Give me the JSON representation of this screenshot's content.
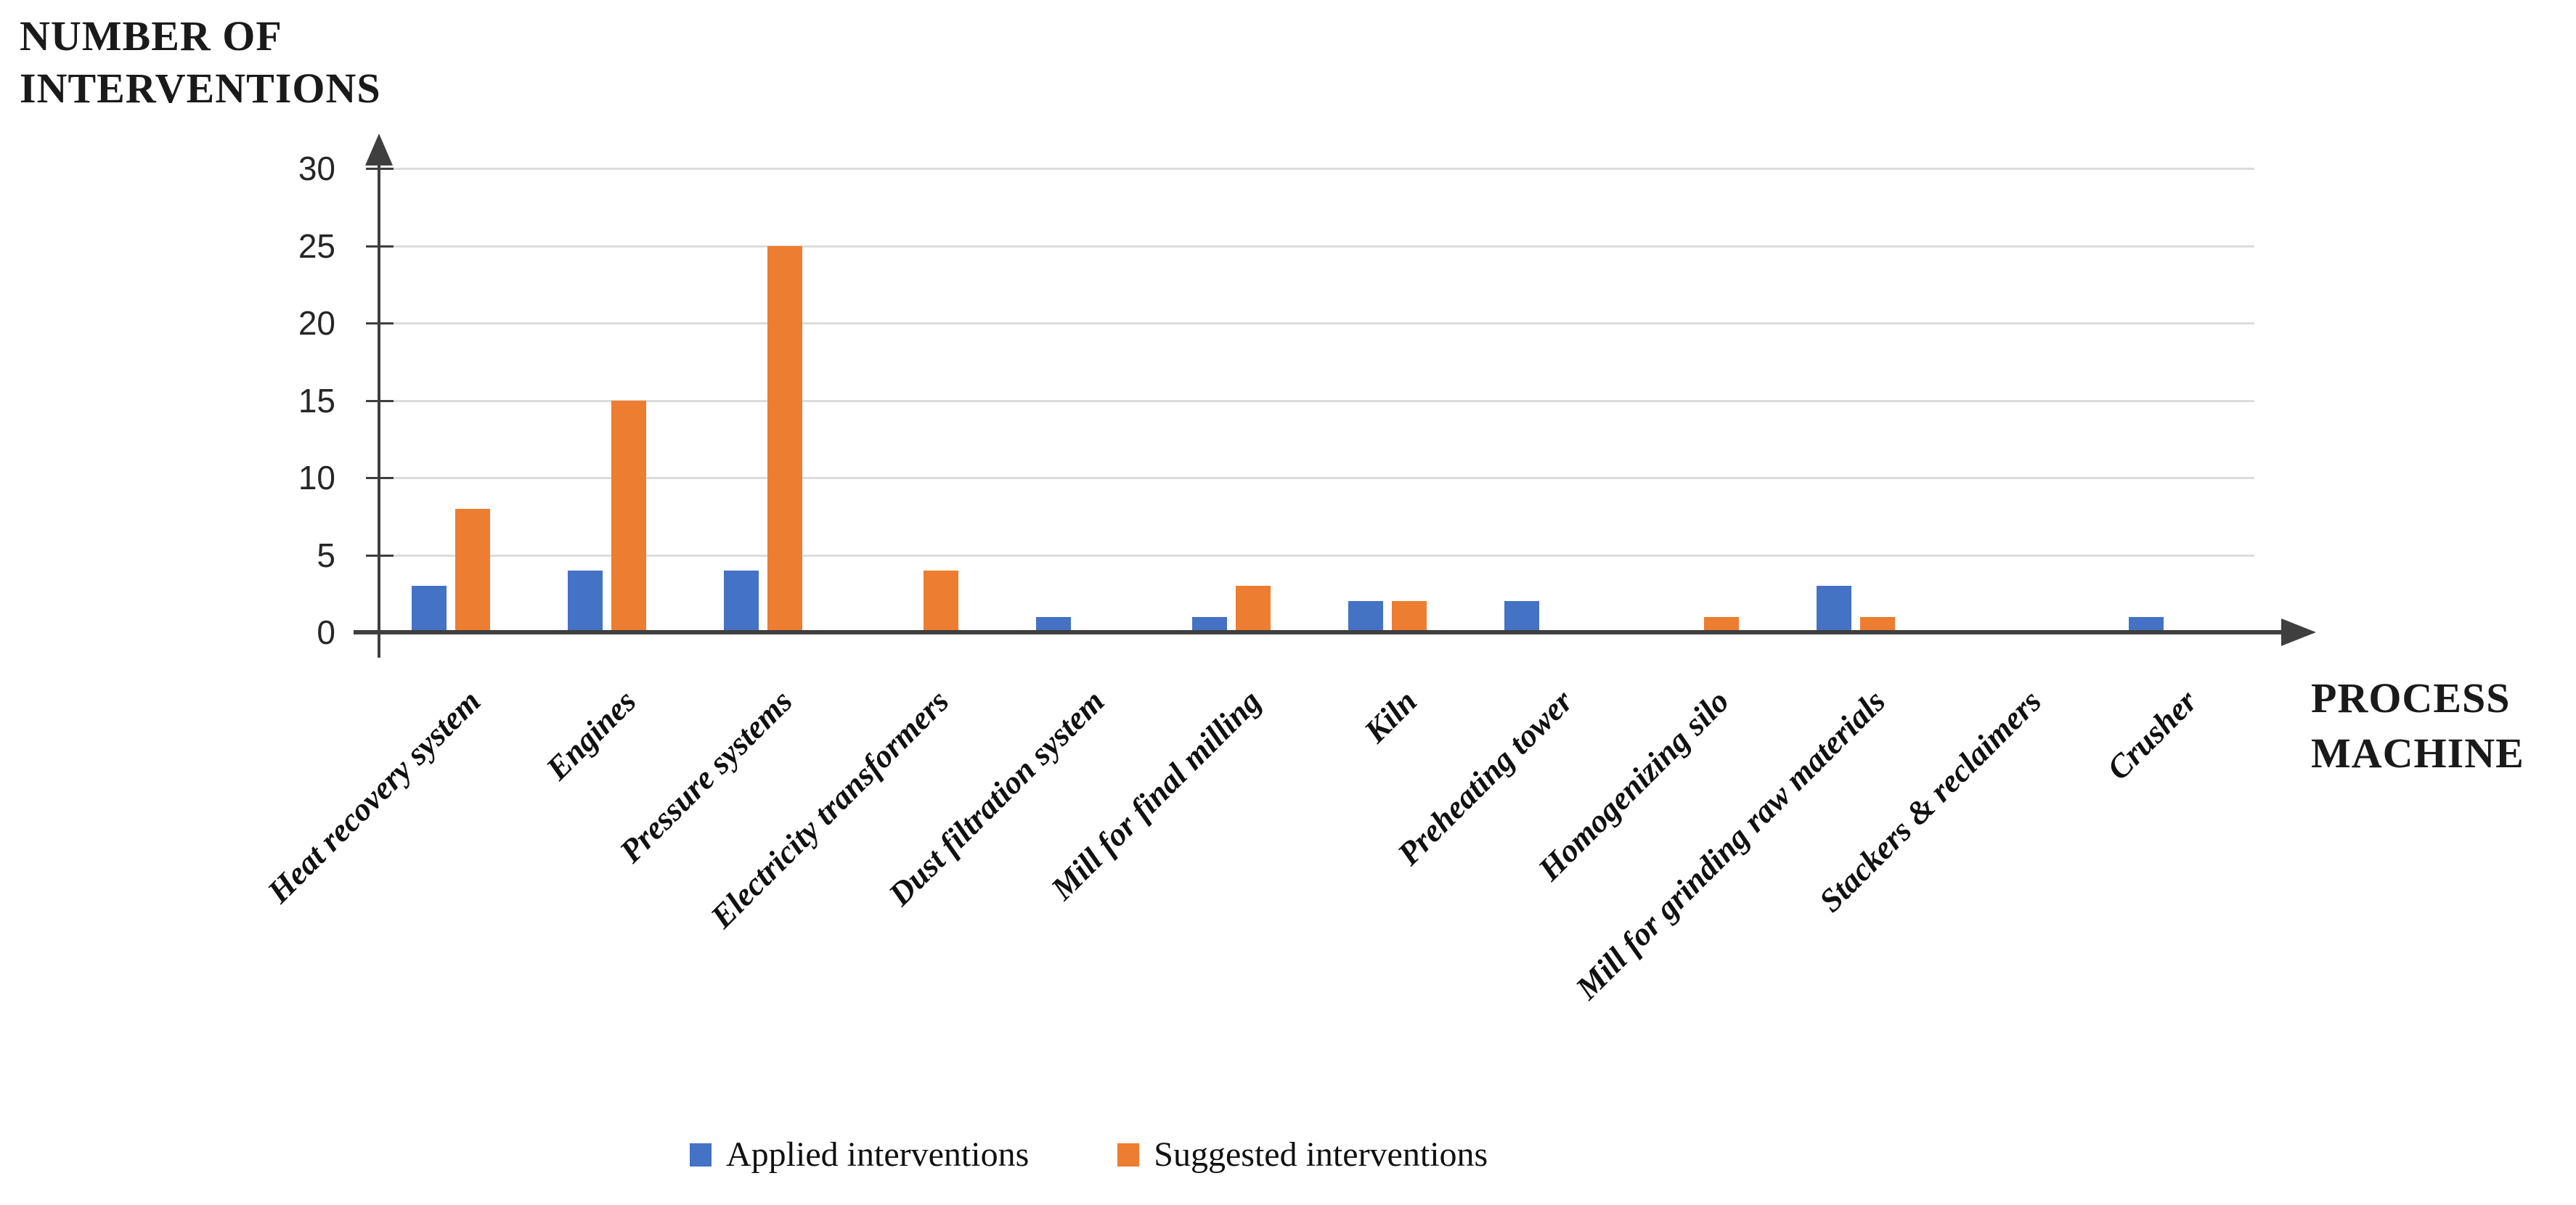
{
  "figure": {
    "y_axis_title": {
      "line1": "NUMBER OF",
      "line2": "INTERVENTIONS"
    },
    "x_axis_title": {
      "line1": "PROCESS",
      "line2": "MACHINE"
    }
  },
  "legend": {
    "items": [
      {
        "label": "Applied interventions",
        "color": "#4472C4"
      },
      {
        "label": "Suggested interventions",
        "color": "#ED7D31"
      }
    ]
  },
  "chart_data": {
    "type": "bar",
    "title": "",
    "categories": [
      "Heat recovery system",
      "Engines",
      "Pressure systems",
      "Electricity transformers",
      "Dust filtration system",
      "Mill for final milling",
      "Kiln",
      "Preheating tower",
      "Homogenizing silo",
      "Mill for grinding raw materials",
      "Stackers & reclaimers",
      "Crusher"
    ],
    "series": [
      {
        "name": "Applied interventions",
        "color": "#4472C4",
        "values": [
          3,
          4,
          4,
          0,
          1,
          1,
          2,
          2,
          0,
          3,
          0,
          1
        ]
      },
      {
        "name": "Suggested interventions",
        "color": "#ED7D31",
        "values": [
          8,
          15,
          25,
          4,
          0,
          3,
          2,
          0,
          1,
          1,
          0,
          0
        ]
      }
    ],
    "xlabel": "PROCESS MACHINE",
    "ylabel": "NUMBER OF INTERVENTIONS",
    "ylim": [
      0,
      30
    ],
    "yticks": [
      0,
      5,
      10,
      15,
      20,
      25,
      30
    ],
    "grid": true,
    "legend_position": "bottom",
    "axis_color": "#3F3F3F",
    "gridline_color": "#DCDCDC"
  }
}
